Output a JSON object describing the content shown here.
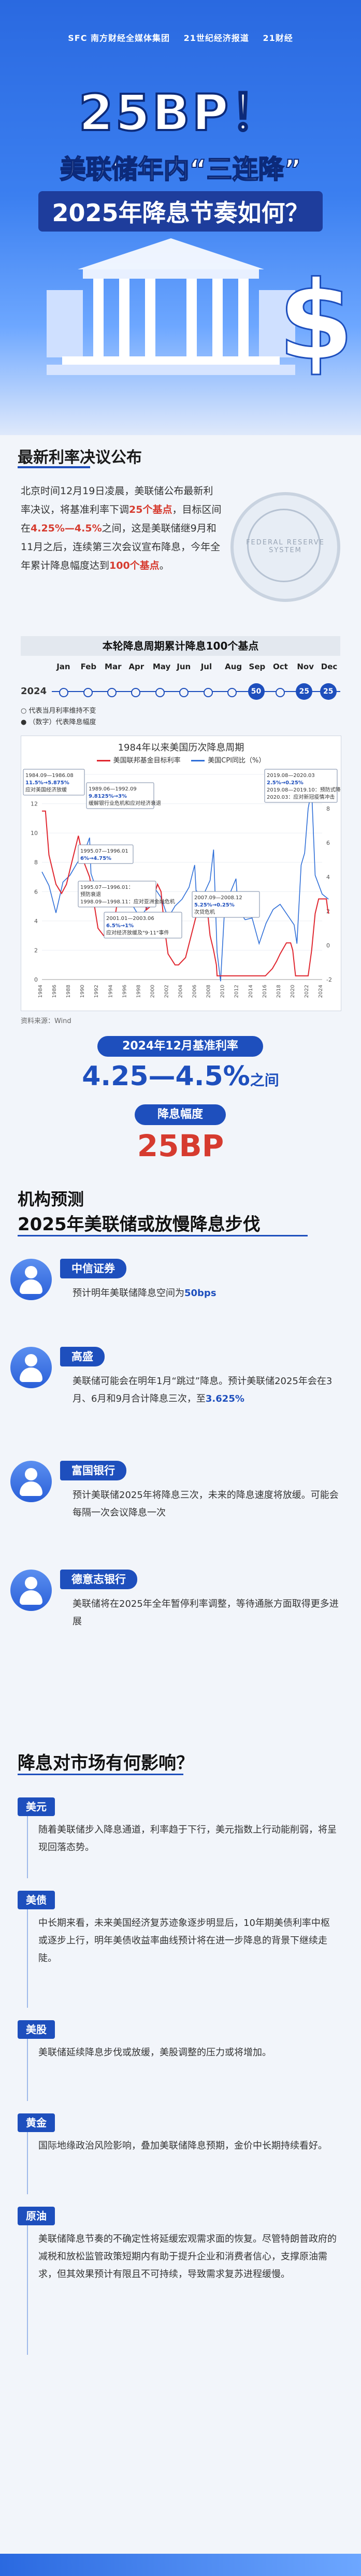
{
  "header": {
    "logos": [
      "SFC 南方财经全媒体集团",
      "21世纪经济报道",
      "21财经"
    ],
    "headline_bp": "25BP！",
    "headline_line1": "美联储年内“三连降”",
    "headline_line2": "2025年降息节奏如何？"
  },
  "section1": {
    "title": "最新利率决议公布",
    "para": {
      "t1": "北京时间12月19日凌晨，美联储公布最新利率决议，将基准利率下调",
      "h1": "25个基点",
      "t2": "，目标区间在",
      "h2": "4.25%—4.5%",
      "t3": "之间，这是美联储继9月和11月之后，连续第三次会议宣布降息，今年全年累计降息幅度达到",
      "h3": "100个基点",
      "t4": "。"
    },
    "seal_text": "FEDERAL RESERVE SYSTEM"
  },
  "timeline": {
    "title": "本轮降息周期累计降息100个基点",
    "year": "2024",
    "months": [
      "Jan",
      "Feb",
      "Mar",
      "Apr",
      "May",
      "Jun",
      "Jul",
      "Aug",
      "Sep",
      "Oct",
      "Nov",
      "Dec"
    ],
    "cuts": [
      {
        "month": "Sep",
        "label": "50"
      },
      {
        "month": "Nov",
        "label": "25"
      },
      {
        "month": "Dec",
        "label": "25"
      }
    ],
    "legend": [
      "代表当月利率维持不变",
      "（数字）代表降息幅度"
    ]
  },
  "chart_data": {
    "type": "line",
    "title": "1984年以来美国历次降息周期",
    "legend": [
      "美国联邦基金目标利率",
      "美国CPI同比（%）"
    ],
    "colors": {
      "rate": "#e0262f",
      "cpi": "#2f6fd8"
    },
    "ylim_left": [
      0,
      14
    ],
    "ylim_right": [
      -2,
      10
    ],
    "x_start": 1984,
    "x_end": 2024,
    "x_ticks": [
      "1984",
      "1986",
      "1988",
      "1990",
      "1992",
      "1994",
      "1996",
      "1998",
      "2000",
      "2002",
      "2004",
      "2006",
      "2008",
      "2010",
      "2012",
      "2014",
      "2016",
      "2018",
      "2020",
      "2022",
      "2024"
    ],
    "y_ticks_left": [
      0,
      2,
      4,
      6,
      8,
      10,
      12,
      14
    ],
    "y_ticks_right": [
      -2,
      0,
      2,
      4,
      6,
      8,
      10
    ],
    "rate": {
      "x": [
        1984,
        1984.5,
        1985,
        1986,
        1986.8,
        1987.5,
        1988,
        1989.2,
        1990,
        1990.8,
        1991.5,
        1992,
        1992.8,
        1994,
        1995,
        1995.1,
        1996,
        1998.7,
        1998.9,
        1999.5,
        2000.5,
        2001,
        2001.5,
        2002,
        2003,
        2003.5,
        2004.5,
        2006.5,
        2007.5,
        2008,
        2008.5,
        2008.9,
        2009,
        2015.9,
        2016.9,
        2017.5,
        2018,
        2018.9,
        2019.5,
        2019.8,
        2020.2,
        2022,
        2022.5,
        2023,
        2023.5,
        2024.6,
        2024.8,
        2024.95
      ],
      "y": [
        11.5,
        11.5,
        8.5,
        6.5,
        5.875,
        6.5,
        7.5,
        9.8125,
        8.0,
        7.0,
        5.0,
        3.5,
        3.0,
        3.0,
        6.0,
        6.0,
        5.25,
        5.5,
        4.75,
        5.0,
        6.5,
        6.0,
        3.5,
        1.75,
        1.0,
        1.0,
        1.5,
        5.25,
        5.25,
        3.0,
        2.0,
        1.0,
        0.25,
        0.25,
        0.75,
        1.25,
        1.75,
        2.5,
        2.5,
        2.0,
        0.25,
        0.25,
        2.0,
        4.5,
        5.5,
        5.5,
        4.75,
        4.5
      ]
    },
    "cpi": {
      "x": [
        1984,
        1985,
        1986,
        1987,
        1988,
        1989,
        1990,
        1990.8,
        1991,
        1992,
        1993,
        1994,
        1995,
        1996,
        1997,
        1998,
        1999,
        2000,
        2001,
        2002,
        2003,
        2004,
        2005,
        2005.8,
        2006,
        2007,
        2008,
        2008.5,
        2009,
        2009.5,
        2010,
        2011,
        2011.7,
        2012,
        2013,
        2014,
        2015,
        2016,
        2017,
        2018,
        2019,
        2020,
        2020.4,
        2021,
        2021.5,
        2022,
        2022.5,
        2023,
        2024,
        2024.9
      ],
      "y": [
        4.3,
        3.5,
        1.9,
        3.7,
        4.1,
        4.8,
        5.4,
        6.3,
        4.2,
        3.0,
        2.9,
        2.6,
        2.8,
        3.0,
        2.3,
        1.6,
        2.2,
        3.4,
        2.8,
        1.6,
        2.3,
        2.7,
        3.4,
        4.7,
        3.2,
        2.9,
        3.8,
        5.6,
        -0.4,
        -2.1,
        1.6,
        3.2,
        3.9,
        2.1,
        1.5,
        1.6,
        0.1,
        1.3,
        2.1,
        2.4,
        1.8,
        1.2,
        0.1,
        4.7,
        5.4,
        8.0,
        9.1,
        4.1,
        3.0,
        2.7
      ]
    },
    "annotations": [
      {
        "title": "1984.09—1986.08",
        "value": "11.5%→5.875%",
        "note": "应对美国经济放缓"
      },
      {
        "title": "1989.06—1992.09",
        "value": "9.8125%→3%",
        "note": "缓解银行业危机和应对经济衰退"
      },
      {
        "title": "1995.07—1996.01",
        "value": "6%→4.75%",
        "note": ""
      },
      {
        "title": "1995.07—1996.01：",
        "value": "",
        "note": "预防衰退\n1998.09—1998.11：应对亚洲金融危机"
      },
      {
        "title": "2001.01—2003.06",
        "value": "6.5%→1%",
        "note": "应对经济放缓及\"9·11\"事件"
      },
      {
        "title": "2007.09—2008.12",
        "value": "5.25%→0.25%",
        "note": "次贷危机"
      },
      {
        "title": "2019.08—2020.03",
        "value": "2.5%→0.25%",
        "note": "2019.08—2019.10：预防式降息\n2020.03：应对新冠疫情冲击"
      }
    ]
  },
  "source": "资料来源：Wind",
  "result": {
    "rate_label": "2024年12月基准利率",
    "rate_value": "4.25—4.5%",
    "rate_suffix": "之间",
    "cut_label": "降息幅度",
    "cut_value": "25BP"
  },
  "section2": {
    "title_1": "机构预测",
    "title_2": "2025年美联储或放慢降息步伐",
    "institutions": [
      {
        "name": "中信证券",
        "text": "预计明年美联储降息空间为",
        "highlight": "50bps",
        "text2": ""
      },
      {
        "name": "高盛",
        "text": "美联储可能会在明年1月“跳过”降息。预计美联储2025年会在3月、6月和9月合计降息三次，至",
        "highlight": "3.625%",
        "text2": ""
      },
      {
        "name": "富国银行",
        "text": "预计美联储2025年将降息三次，未来的降息速度将放缓。可能会每隔一次会议降息一次",
        "highlight": "",
        "text2": ""
      },
      {
        "name": "德意志银行",
        "text": "美联储将在2025年全年暂停利率调整，等待通胀方面取得更多进展",
        "highlight": "",
        "text2": ""
      }
    ]
  },
  "section3": {
    "title": "降息对市场有何影响？",
    "impacts": [
      {
        "name": "美元",
        "text": "随着美联储步入降息通道，利率趋于下行，美元指数上行动能削弱，将呈现回落态势。"
      },
      {
        "name": "美债",
        "text": "中长期来看，未来美国经济复苏迹象逐步明显后，10年期美债利率中枢或逐步上行，明年美债收益率曲线预计将在进一步降息的背景下继续走陡。"
      },
      {
        "name": "美股",
        "text": "美联储延续降息步伐或放缓，美股调整的压力或将增加。"
      },
      {
        "name": "黄金",
        "text": "国际地缘政治风险影响，叠加美联储降息预期，金价中长期持续看好。"
      },
      {
        "name": "原油",
        "text": "美联储降息节奏的不确定性将延缓宏观需求面的恢复。尽管特朗普政府的减税和放松监管政策短期内有助于提升企业和消费者信心，支撑原油需求，但其效果预计有限且不可持续，导致需求复苏进程缓慢。"
      }
    ]
  }
}
